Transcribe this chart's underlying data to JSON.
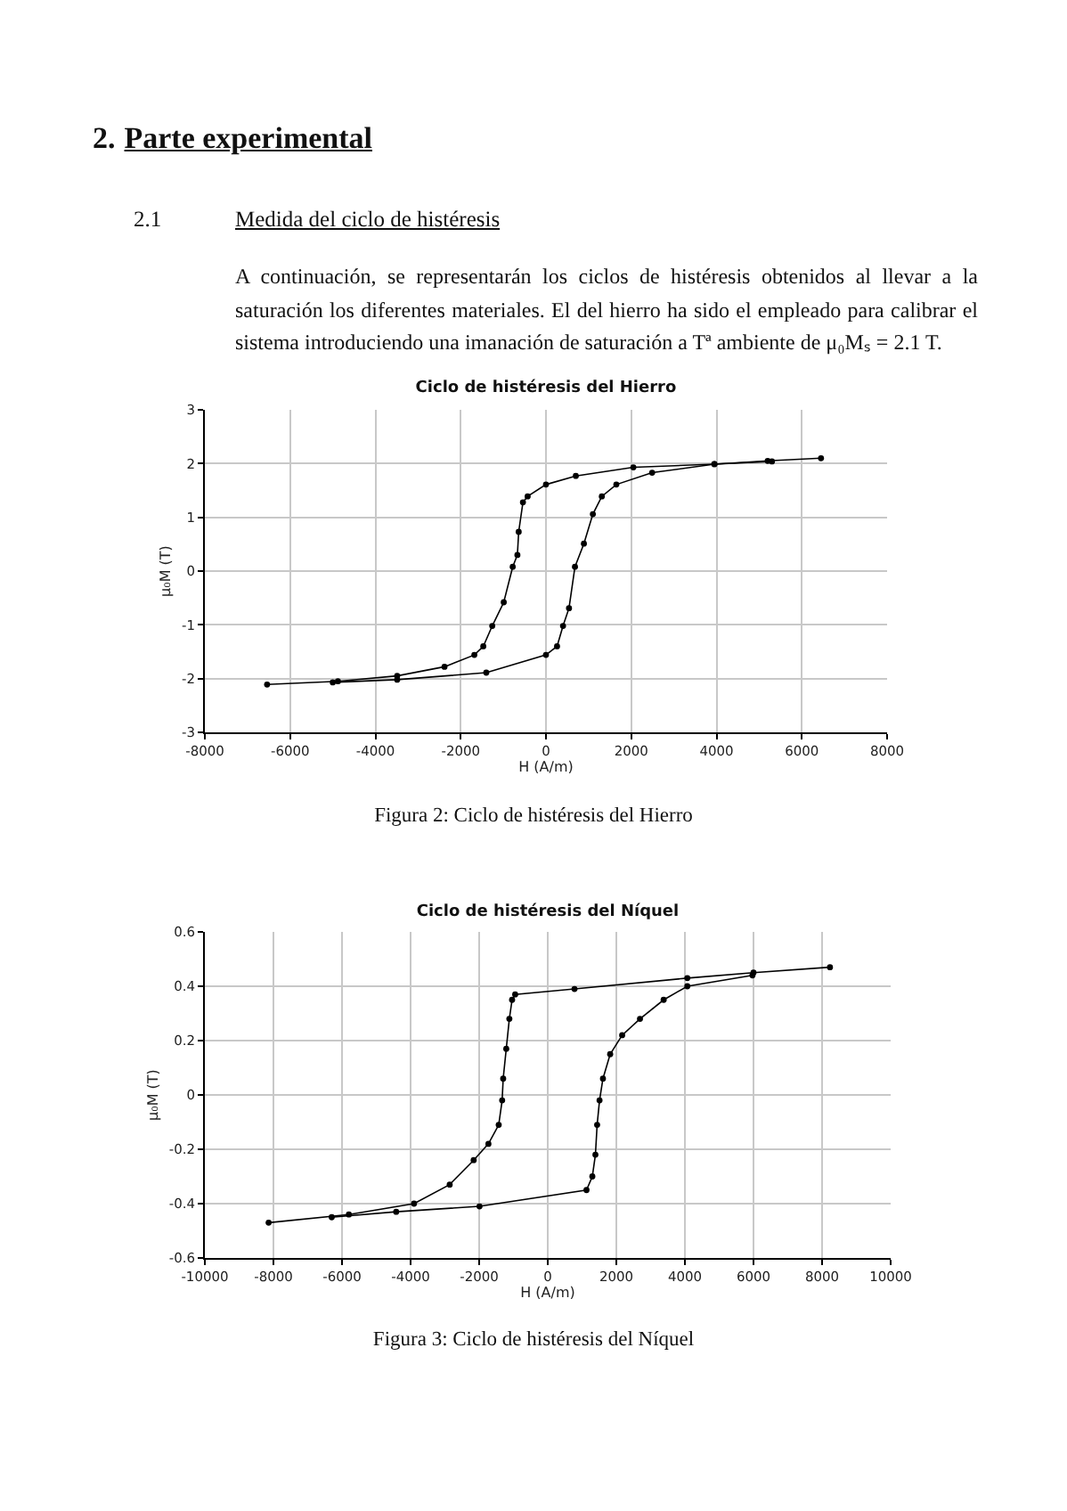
{
  "chart_data": [
    {
      "type": "line",
      "title": "Ciclo de histéresis del Hierro",
      "xlabel": "H (A/m)",
      "ylabel": "μ₀M (T)",
      "annotations": [
        "2. Parte experimental",
        "2.1 Medida del ciclo de histéresis",
        "A continuación, se representarán los ciclos de histéresis obtenidos al llevar a la saturación los diferentes materiales. El del hierro ha sido el empleado para calibrar el sistema introduciendo una imanación de saturación a Tª ambiente de μ₀Mₛ = 2.1 T.",
        "Figura 2: Ciclo de histéresis del Hierro"
      ],
      "series": [
        {
          "color": "#000000",
          "x": [
            -6540,
            -4880,
            -3490,
            -2380,
            -1680,
            -1470,
            -1260,
            -990,
            -780,
            -670,
            -640,
            -540,
            -430,
            0,
            700,
            2050,
            3950,
            5200,
            6450
          ],
          "values": [
            -2.11,
            -2.05,
            -1.95,
            -1.78,
            -1.56,
            -1.4,
            -1.02,
            -0.58,
            0.08,
            0.3,
            0.73,
            1.28,
            1.39,
            1.61,
            1.77,
            1.93,
            1.99,
            2.05,
            2.1
          ]
        },
        {
          "color": "#000000",
          "x": [
            -5000,
            -3490,
            -1400,
            0,
            260,
            400,
            540,
            680,
            890,
            1100,
            1310,
            1650,
            2490,
            3950,
            5300
          ],
          "values": [
            -2.07,
            -2.02,
            -1.89,
            -1.56,
            -1.4,
            -1.02,
            -0.69,
            0.08,
            0.51,
            1.06,
            1.39,
            1.61,
            1.83,
            1.99,
            2.04
          ]
        }
      ],
      "xlim": [
        -8000,
        8000
      ],
      "xticks": [
        -8000,
        -6000,
        -4000,
        -2000,
        0,
        2000,
        4000,
        6000,
        8000
      ],
      "ylim": [
        -3,
        3
      ],
      "yticks": [
        -3,
        -2,
        -1,
        0,
        1,
        2,
        3
      ],
      "grid": true,
      "marker": "circle",
      "line_style": "solid"
    },
    {
      "type": "line",
      "title": "Ciclo de histéresis del Níquel",
      "xlabel": "H (A/m)",
      "ylabel": "μ₀M (T)",
      "annotations": [
        "Figura 3: Ciclo de histéresis del Níquel"
      ],
      "series": [
        {
          "color": "#000000",
          "x": [
            -8140,
            -5800,
            -3900,
            -2860,
            -2160,
            -1730,
            -1430,
            -1330,
            -1300,
            -1210,
            -1120,
            -1040,
            -950,
            780,
            4070,
            6000,
            8230
          ],
          "values": [
            -0.47,
            -0.44,
            -0.4,
            -0.33,
            -0.24,
            -0.18,
            -0.11,
            -0.02,
            0.06,
            0.17,
            0.28,
            0.35,
            0.37,
            0.39,
            0.43,
            0.45,
            0.47
          ]
        },
        {
          "color": "#000000",
          "x": [
            -6300,
            -4420,
            -1990,
            1130,
            1300,
            1390,
            1440,
            1510,
            1610,
            1820,
            2170,
            2690,
            3380,
            4070,
            5970
          ],
          "values": [
            -0.45,
            -0.43,
            -0.41,
            -0.35,
            -0.3,
            -0.22,
            -0.11,
            -0.02,
            0.06,
            0.15,
            0.22,
            0.28,
            0.35,
            0.4,
            0.44
          ]
        }
      ],
      "xlim": [
        -10000,
        10000
      ],
      "xticks": [
        -10000,
        -8000,
        -6000,
        -4000,
        -2000,
        0,
        2000,
        4000,
        6000,
        8000,
        10000
      ],
      "ylim": [
        -0.6,
        0.6
      ],
      "yticks": [
        -0.6,
        -0.4,
        -0.2,
        0,
        0.2,
        0.4,
        0.6
      ],
      "grid": true,
      "marker": "circle",
      "line_style": "solid"
    }
  ]
}
